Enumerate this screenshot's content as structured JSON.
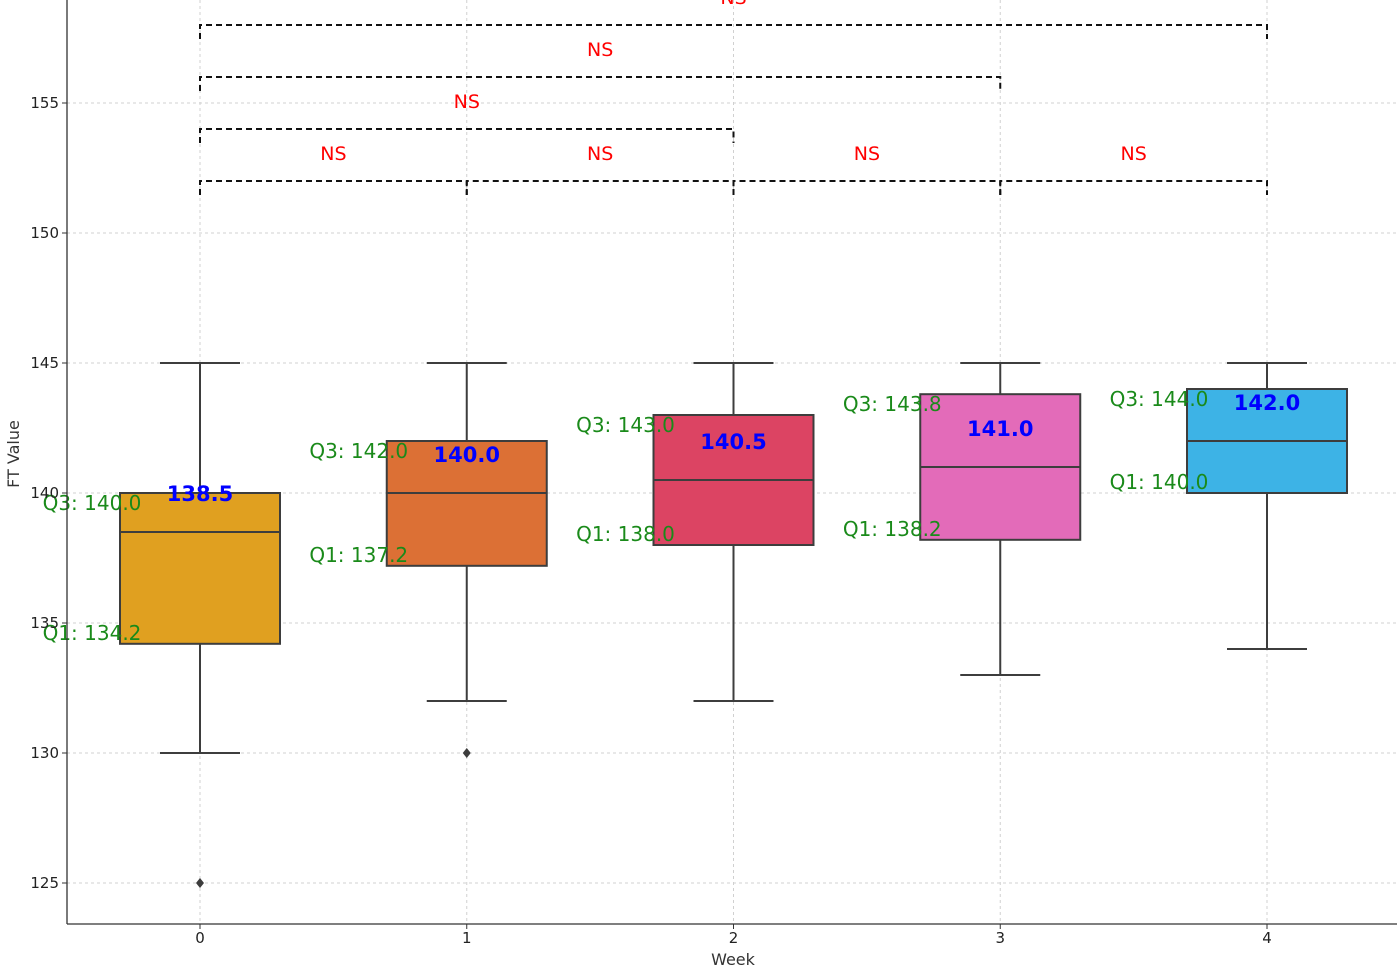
{
  "chart_data": {
    "type": "box",
    "xlabel": "Week",
    "ylabel": "FT Value",
    "ylim": [
      123.4,
      159
    ],
    "yticks": [
      125,
      130,
      135,
      140,
      145,
      150,
      155
    ],
    "grid": true,
    "categories": [
      "0",
      "1",
      "2",
      "3",
      "4"
    ],
    "boxes": [
      {
        "week": "0",
        "q1": 134.2,
        "median": 138.5,
        "q3": 140.0,
        "whisker_low": 130,
        "whisker_high": 145,
        "outliers": [
          125
        ],
        "color": "#e0a020",
        "q1_text": "Q1: 134.2",
        "q3_text": "Q3: 140.0",
        "median_text": "138.5"
      },
      {
        "week": "1",
        "q1": 137.2,
        "median": 140.0,
        "q3": 142.0,
        "whisker_low": 132,
        "whisker_high": 145,
        "outliers": [
          130
        ],
        "color": "#dc7035",
        "q1_text": "Q1: 137.2",
        "q3_text": "Q3: 142.0",
        "median_text": "140.0"
      },
      {
        "week": "2",
        "q1": 138.0,
        "median": 140.5,
        "q3": 143.0,
        "whisker_low": 132,
        "whisker_high": 145,
        "outliers": [],
        "color": "#dc4463",
        "q1_text": "Q1: 138.0",
        "q3_text": "Q3: 143.0",
        "median_text": "140.5"
      },
      {
        "week": "3",
        "q1": 138.2,
        "median": 141.0,
        "q3": 143.8,
        "whisker_low": 133,
        "whisker_high": 145,
        "outliers": [],
        "color": "#e36bb9",
        "q1_text": "Q1: 138.2",
        "q3_text": "Q3: 143.8",
        "median_text": "141.0"
      },
      {
        "week": "4",
        "q1": 140.0,
        "median": 142.0,
        "q3": 144.0,
        "whisker_low": 134,
        "whisker_high": 145,
        "outliers": [],
        "color": "#3db3e6",
        "q1_text": "Q1: 140.0",
        "q3_text": "Q3: 144.0",
        "median_text": "142.0"
      }
    ],
    "significance": [
      {
        "from": "0",
        "to": "1",
        "level": 152,
        "label": "NS"
      },
      {
        "from": "1",
        "to": "2",
        "level": 152,
        "label": "NS"
      },
      {
        "from": "2",
        "to": "3",
        "level": 152,
        "label": "NS"
      },
      {
        "from": "3",
        "to": "4",
        "level": 152,
        "label": "NS"
      },
      {
        "from": "0",
        "to": "2",
        "level": 154,
        "label": "NS"
      },
      {
        "from": "0",
        "to": "3",
        "level": 156,
        "label": "NS"
      },
      {
        "from": "0",
        "to": "4",
        "level": 158,
        "label": "NS"
      }
    ]
  }
}
